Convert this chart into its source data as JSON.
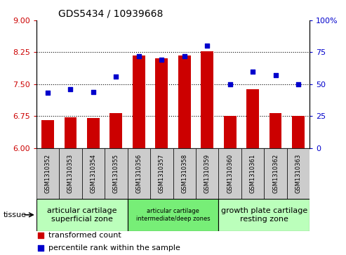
{
  "title": "GDS5434 / 10939668",
  "samples": [
    "GSM1310352",
    "GSM1310353",
    "GSM1310354",
    "GSM1310355",
    "GSM1310356",
    "GSM1310357",
    "GSM1310358",
    "GSM1310359",
    "GSM1310360",
    "GSM1310361",
    "GSM1310362",
    "GSM1310363"
  ],
  "bar_values": [
    6.65,
    6.72,
    6.7,
    6.82,
    8.17,
    8.1,
    8.17,
    8.28,
    6.75,
    7.38,
    6.82,
    6.75
  ],
  "scatter_values": [
    43,
    46,
    44,
    56,
    72,
    69,
    72,
    80,
    50,
    60,
    57,
    50
  ],
  "bar_color": "#cc0000",
  "scatter_color": "#0000cc",
  "ylim_left": [
    6,
    9
  ],
  "ylim_right": [
    0,
    100
  ],
  "yticks_left": [
    6,
    6.75,
    7.5,
    8.25,
    9
  ],
  "yticks_right": [
    0,
    25,
    50,
    75,
    100
  ],
  "hlines": [
    6.75,
    7.5,
    8.25
  ],
  "groups": [
    {
      "label": "articular cartilage\nsuperficial zone",
      "start": 0,
      "end": 3,
      "color": "#bbffbb",
      "fontsize": 8
    },
    {
      "label": "articular cartilage\nintermediate/deep zones",
      "start": 4,
      "end": 7,
      "color": "#77ee77",
      "fontsize": 6
    },
    {
      "label": "growth plate cartilage\nresting zone",
      "start": 8,
      "end": 11,
      "color": "#bbffbb",
      "fontsize": 8
    }
  ],
  "tissue_label": "tissue",
  "legend_bar_label": "transformed count",
  "legend_scatter_label": "percentile rank within the sample",
  "sample_bg_color": "#cccccc",
  "plot_bg_color": "#ffffff"
}
